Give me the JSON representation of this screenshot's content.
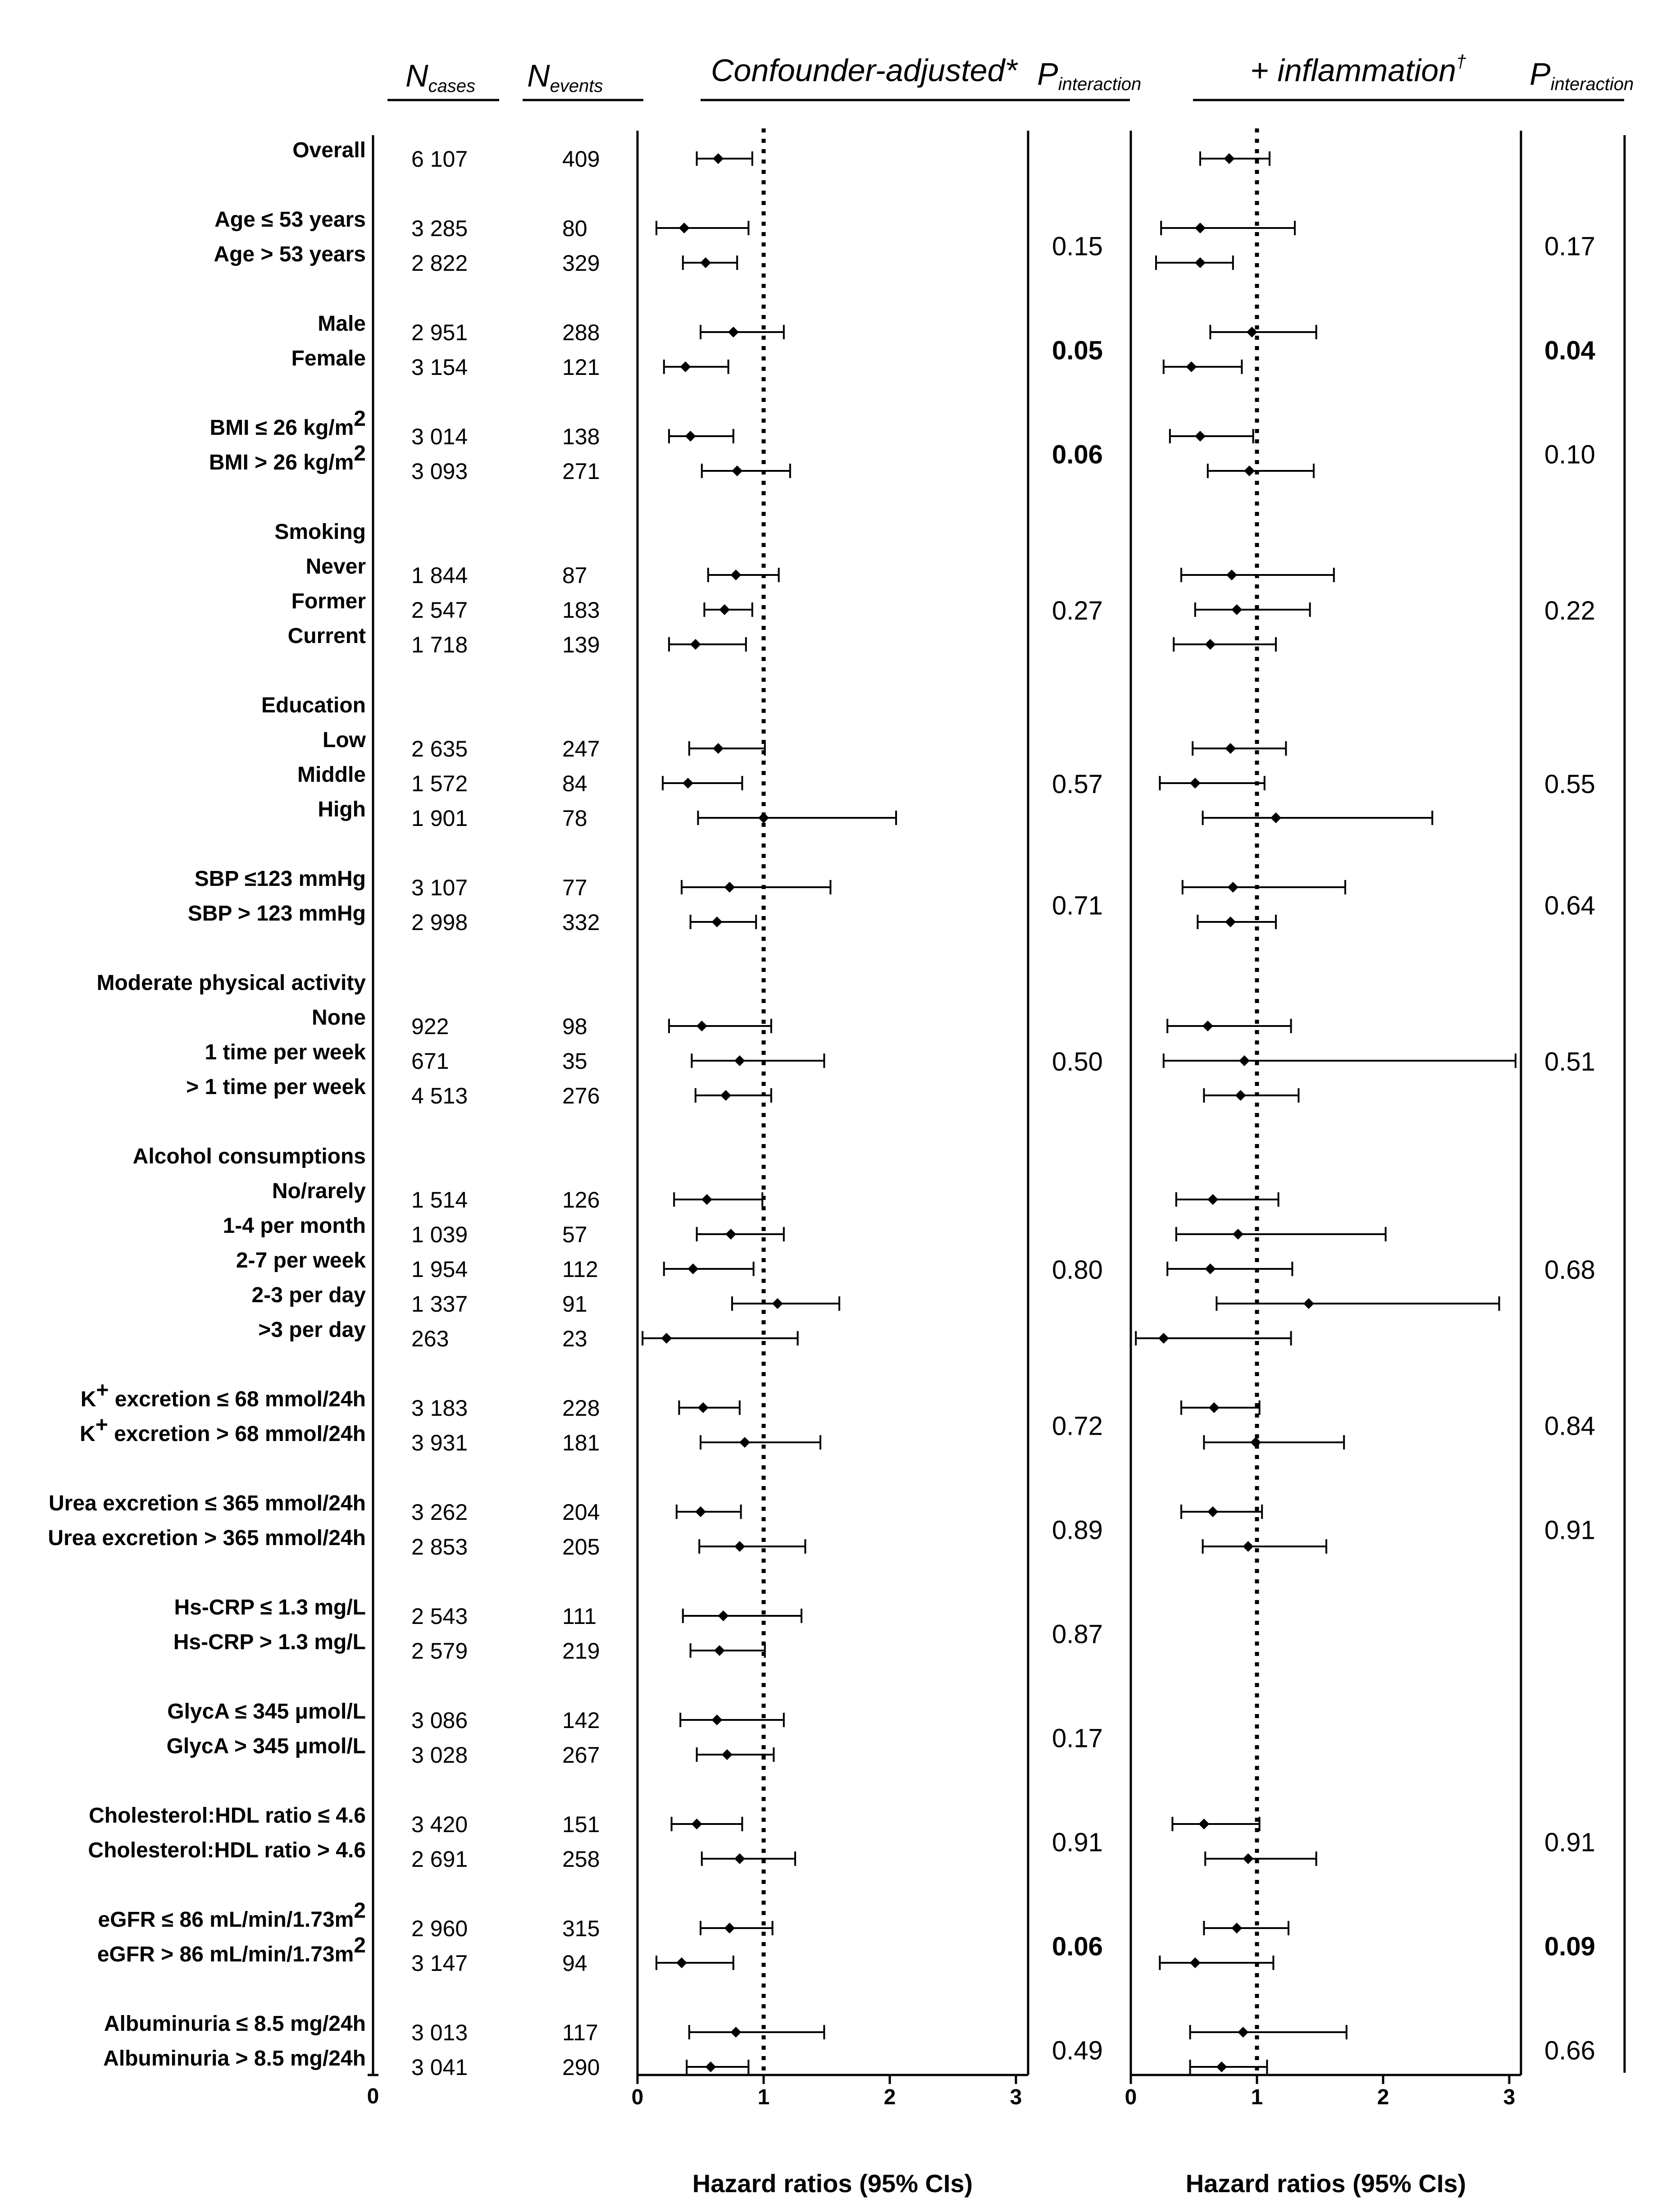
{
  "headers": {
    "n_cases_main": "N",
    "n_cases_sub": "cases",
    "n_events_main": "N",
    "n_events_sub": "events",
    "confounder": "Confounder-adjusted*",
    "inflammation": "+ inflammation",
    "dagger": "†",
    "p_main": "P",
    "p_sub": "interaction"
  },
  "x_axis_title": "Hazard ratios (95% CIs)",
  "chart_data": {
    "type": "forest",
    "xlim": [
      0,
      3.1
    ],
    "reference_line": 1,
    "ticks": [
      0,
      1,
      2,
      3
    ],
    "ncases_axis_tick": "0",
    "panels": [
      "Confounder-adjusted*",
      "+ inflammation†"
    ],
    "rows": [
      {
        "label": "Overall",
        "n": "6 107",
        "e": "409",
        "a": [
          0.64,
          0.47,
          0.91
        ],
        "b": [
          0.78,
          0.55,
          1.1
        ]
      },
      {
        "label": "Age ≤ 53 years",
        "n": "3 285",
        "e": "80",
        "a": [
          0.37,
          0.15,
          0.88
        ],
        "b": [
          0.55,
          0.24,
          1.3
        ]
      },
      {
        "label": "Age > 53 years",
        "n": "2 822",
        "e": "329",
        "a": [
          0.54,
          0.36,
          0.79
        ],
        "b": [
          0.55,
          0.2,
          0.81
        ]
      },
      {
        "label": "Male",
        "n": "2 951",
        "e": "288",
        "a": [
          0.76,
          0.5,
          1.16
        ],
        "b": [
          0.96,
          0.63,
          1.47
        ]
      },
      {
        "label": "Female",
        "n": "3 154",
        "e": "121",
        "a": [
          0.38,
          0.21,
          0.72
        ],
        "b": [
          0.48,
          0.26,
          0.88
        ]
      },
      {
        "label": "BMI ≤ 26 kg/m",
        "sup": "2",
        "n": "3 014",
        "e": "138",
        "a": [
          0.42,
          0.25,
          0.76
        ],
        "b": [
          0.55,
          0.31,
          0.97
        ]
      },
      {
        "label": "BMI > 26 kg/m",
        "sup": "2",
        "n": "3 093",
        "e": "271",
        "a": [
          0.79,
          0.51,
          1.21
        ],
        "b": [
          0.94,
          0.61,
          1.45
        ]
      },
      {
        "label": "Smoking",
        "header": true
      },
      {
        "label": "Never",
        "n": "1 844",
        "e": "87",
        "a": [
          0.78,
          0.56,
          1.12
        ],
        "b": [
          0.8,
          0.4,
          1.61
        ]
      },
      {
        "label": "Former",
        "n": "2 547",
        "e": "183",
        "a": [
          0.69,
          0.53,
          0.91
        ],
        "b": [
          0.84,
          0.51,
          1.42
        ]
      },
      {
        "label": "Current",
        "n": "1 718",
        "e": "139",
        "a": [
          0.46,
          0.25,
          0.86
        ],
        "b": [
          0.63,
          0.34,
          1.15
        ]
      },
      {
        "label": "Education",
        "header": true
      },
      {
        "label": "Low",
        "n": "2 635",
        "e": "247",
        "a": [
          0.64,
          0.41,
          1.01
        ],
        "b": [
          0.79,
          0.49,
          1.23
        ]
      },
      {
        "label": "Middle",
        "n": "1 572",
        "e": "84",
        "a": [
          0.4,
          0.2,
          0.83
        ],
        "b": [
          0.51,
          0.23,
          1.06
        ]
      },
      {
        "label": "High",
        "n": "1 901",
        "e": "78",
        "a": [
          1.0,
          0.48,
          2.05
        ],
        "b": [
          1.15,
          0.57,
          2.39
        ]
      },
      {
        "label": "SBP ≤123 mmHg",
        "n": "3 107",
        "e": "77",
        "a": [
          0.73,
          0.35,
          1.53
        ],
        "b": [
          0.81,
          0.41,
          1.7
        ]
      },
      {
        "label": "SBP > 123 mmHg",
        "n": "2 998",
        "e": "332",
        "a": [
          0.63,
          0.42,
          0.94
        ],
        "b": [
          0.79,
          0.53,
          1.15
        ]
      },
      {
        "label": "Moderate physical activity",
        "header": true
      },
      {
        "label": "None",
        "n": "922",
        "e": "98",
        "a": [
          0.51,
          0.25,
          1.06
        ],
        "b": [
          0.61,
          0.29,
          1.27
        ]
      },
      {
        "label": "1 time per week",
        "n": "671",
        "e": "35",
        "a": [
          0.81,
          0.43,
          1.48
        ],
        "b": [
          0.9,
          0.26,
          3.05
        ]
      },
      {
        "label": "> 1 time per week",
        "n": "4 513",
        "e": "276",
        "a": [
          0.7,
          0.46,
          1.06
        ],
        "b": [
          0.87,
          0.58,
          1.33
        ]
      },
      {
        "label": "Alcohol consumptions",
        "header": true
      },
      {
        "label": "No/rarely",
        "n": "1 514",
        "e": "126",
        "a": [
          0.55,
          0.29,
          0.99
        ],
        "b": [
          0.65,
          0.36,
          1.17
        ]
      },
      {
        "label": "1-4 per month",
        "n": "1 039",
        "e": "57",
        "a": [
          0.74,
          0.47,
          1.16
        ],
        "b": [
          0.85,
          0.36,
          2.02
        ]
      },
      {
        "label": "2-7 per week",
        "n": "1 954",
        "e": "112",
        "a": [
          0.44,
          0.21,
          0.92
        ],
        "b": [
          0.63,
          0.29,
          1.28
        ]
      },
      {
        "label": "2-3 per day",
        "n": "1 337",
        "e": "91",
        "a": [
          1.11,
          0.75,
          1.6
        ],
        "b": [
          1.41,
          0.68,
          2.92
        ]
      },
      {
        "label": ">3 per day",
        "n": "263",
        "e": "23",
        "a": [
          0.23,
          0.04,
          1.27
        ],
        "b": [
          0.26,
          0.04,
          1.27
        ]
      },
      {
        "label": "K",
        "sup": "+",
        "label2": " excretion ≤ 68 mmol/24h",
        "n": "3 183",
        "e": "228",
        "a": [
          0.52,
          0.33,
          0.81
        ],
        "b": [
          0.66,
          0.4,
          1.02
        ]
      },
      {
        "label": "K",
        "sup": "+",
        "label2": " excretion > 68 mmol/24h",
        "n": "3 931",
        "e": "181",
        "a": [
          0.85,
          0.5,
          1.45
        ],
        "b": [
          0.99,
          0.58,
          1.69
        ]
      },
      {
        "label": "Urea excretion ≤ 365 mmol/24h",
        "n": "3 262",
        "e": "204",
        "a": [
          0.5,
          0.31,
          0.82
        ],
        "b": [
          0.65,
          0.4,
          1.04
        ]
      },
      {
        "label": "Urea excretion > 365 mmol/24h",
        "n": "2 853",
        "e": "205",
        "a": [
          0.81,
          0.49,
          1.33
        ],
        "b": [
          0.93,
          0.57,
          1.55
        ]
      },
      {
        "label": "Hs-CRP ≤ 1.3 mg/L",
        "n": "2 543",
        "e": "111",
        "a": [
          0.68,
          0.36,
          1.3
        ],
        "b": null
      },
      {
        "label": "Hs-CRP > 1.3 mg/L",
        "n": "2 579",
        "e": "219",
        "a": [
          0.65,
          0.42,
          1.01
        ],
        "b": null
      },
      {
        "label": "GlycA ≤ 345 μmol/L",
        "n": "3 086",
        "e": "142",
        "a": [
          0.63,
          0.34,
          1.16
        ],
        "b": null
      },
      {
        "label": "GlycA > 345 μmol/L",
        "n": "3 028",
        "e": "267",
        "a": [
          0.71,
          0.47,
          1.08
        ],
        "b": null
      },
      {
        "label": "Cholesterol:HDL ratio ≤ 4.6",
        "n": "3 420",
        "e": "151",
        "a": [
          0.47,
          0.27,
          0.83
        ],
        "b": [
          0.58,
          0.33,
          1.02
        ]
      },
      {
        "label": "Cholesterol:HDL ratio > 4.6",
        "n": "2 691",
        "e": "258",
        "a": [
          0.81,
          0.51,
          1.25
        ],
        "b": [
          0.93,
          0.59,
          1.47
        ]
      },
      {
        "label": "eGFR ≤ 86 mL/min/1.73m",
        "sup": "2",
        "n": "2 960",
        "e": "315",
        "a": [
          0.73,
          0.5,
          1.07
        ],
        "b": [
          0.84,
          0.58,
          1.25
        ]
      },
      {
        "label": "eGFR > 86 mL/min/1.73m",
        "sup": "2",
        "n": "3 147",
        "e": "94",
        "a": [
          0.35,
          0.15,
          0.76
        ],
        "b": [
          0.51,
          0.23,
          1.13
        ]
      },
      {
        "label": "Albuminuria ≤ 8.5 mg/24h",
        "n": "3 013",
        "e": "117",
        "a": [
          0.78,
          0.41,
          1.48
        ],
        "b": [
          0.89,
          0.47,
          1.71
        ]
      },
      {
        "label": "Albuminuria > 8.5 mg/24h",
        "n": "3 041",
        "e": "290",
        "a": [
          0.58,
          0.39,
          0.88
        ],
        "b": [
          0.72,
          0.47,
          1.08
        ]
      }
    ],
    "p_interaction": [
      {
        "rows": [
          1,
          2
        ],
        "a": "0.15",
        "b": "0.17",
        "a_bold": false,
        "b_bold": false
      },
      {
        "rows": [
          3,
          4
        ],
        "a": "0.05",
        "b": "0.04",
        "a_bold": true,
        "b_bold": true
      },
      {
        "rows": [
          5,
          6
        ],
        "a": "0.06",
        "b": "0.10",
        "a_bold": true,
        "b_bold": false
      },
      {
        "rows": [
          8,
          10
        ],
        "a": "0.27",
        "b": "0.22",
        "a_bold": false,
        "b_bold": false
      },
      {
        "rows": [
          12,
          14
        ],
        "a": "0.57",
        "b": "0.55",
        "a_bold": false,
        "b_bold": false
      },
      {
        "rows": [
          15,
          16
        ],
        "a": "0.71",
        "b": "0.64",
        "a_bold": false,
        "b_bold": false
      },
      {
        "rows": [
          18,
          20
        ],
        "a": "0.50",
        "b": "0.51",
        "a_bold": false,
        "b_bold": false
      },
      {
        "rows": [
          22,
          26
        ],
        "a": "0.80",
        "b": "0.68",
        "a_bold": false,
        "b_bold": false
      },
      {
        "rows": [
          27,
          28
        ],
        "a": "0.72",
        "b": "0.84",
        "a_bold": false,
        "b_bold": false
      },
      {
        "rows": [
          29,
          30
        ],
        "a": "0.89",
        "b": "0.91",
        "a_bold": false,
        "b_bold": false
      },
      {
        "rows": [
          31,
          32
        ],
        "a": "0.87",
        "b": null,
        "a_bold": false,
        "b_bold": false
      },
      {
        "rows": [
          33,
          34
        ],
        "a": "0.17",
        "b": null,
        "a_bold": false,
        "b_bold": false
      },
      {
        "rows": [
          35,
          36
        ],
        "a": "0.91",
        "b": "0.91",
        "a_bold": false,
        "b_bold": false
      },
      {
        "rows": [
          37,
          38
        ],
        "a": "0.06",
        "b": "0.09",
        "a_bold": true,
        "b_bold": true
      },
      {
        "rows": [
          39,
          40
        ],
        "a": "0.49",
        "b": "0.66",
        "a_bold": false,
        "b_bold": false
      }
    ]
  }
}
